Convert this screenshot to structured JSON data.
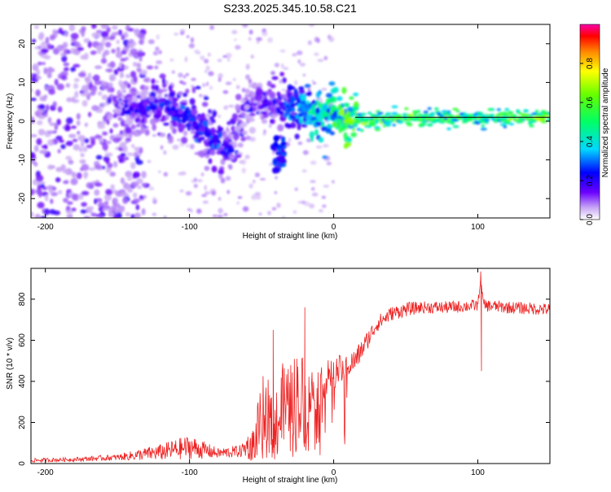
{
  "chart_data": [
    {
      "type": "heatmap",
      "title": "S233.2025.345.10.58.C21",
      "xlabel": "Height of straight line (km)",
      "ylabel": "Frequency (Hz)",
      "xlim": [
        -210,
        150
      ],
      "ylim": [
        -25,
        25
      ],
      "xticks": [
        -200,
        -100,
        0,
        100
      ],
      "xtick_labels": [
        "-200",
        "-100",
        "0",
        "100"
      ],
      "yticks": [
        -20,
        -10,
        0,
        10,
        20
      ],
      "ytick_labels": [
        "-20",
        "-10",
        "0",
        "10",
        "20"
      ],
      "colorbar": {
        "label": "Normalized spectral amplitude",
        "range": [
          0,
          1
        ],
        "ticks": [
          0.0,
          0.2,
          0.4,
          0.6,
          0.8
        ],
        "tick_labels": [
          "0.0",
          "0.2",
          "0.4",
          "0.6",
          "0.8"
        ]
      },
      "ridge": {
        "x": [
          -150,
          -140,
          -130,
          -120,
          -110,
          -100,
          -90,
          -80,
          -70,
          -60,
          -50,
          -40,
          -30,
          -20,
          -10,
          0,
          10,
          20,
          50,
          100,
          150
        ],
        "y": [
          5,
          3,
          4,
          5,
          3,
          1,
          -3,
          -6,
          -7,
          4,
          6,
          4,
          4,
          3,
          1,
          2,
          1,
          0,
          1,
          1,
          1
        ],
        "amplitude": [
          0.2,
          0.22,
          0.25,
          0.25,
          0.28,
          0.3,
          0.28,
          0.3,
          0.25,
          0.2,
          0.22,
          0.25,
          0.3,
          0.45,
          0.5,
          0.55,
          0.7,
          0.65,
          0.65,
          0.6,
          0.7
        ]
      }
    },
    {
      "type": "line",
      "xlabel": "Height of straight line (km)",
      "ylabel": "SNR (10 * v/v)",
      "xlim": [
        -210,
        150
      ],
      "ylim": [
        0,
        950
      ],
      "xticks": [
        -200,
        -100,
        0,
        100
      ],
      "xtick_labels": [
        "-200",
        "-100",
        "0",
        "100"
      ],
      "yticks": [
        0,
        200,
        400,
        600,
        800
      ],
      "ytick_labels": [
        "0",
        "200",
        "400",
        "600",
        "800"
      ],
      "series": [
        {
          "name": "SNR",
          "color": "#ee2222",
          "x": [
            -210,
            -180,
            -150,
            -120,
            -100,
            -80,
            -65,
            -55,
            -50,
            -45,
            -40,
            -35,
            -30,
            -25,
            -20,
            -15,
            -10,
            -5,
            0,
            5,
            10,
            15,
            20,
            25,
            30,
            40,
            50,
            60,
            80,
            100,
            102,
            104,
            120,
            150
          ],
          "y": [
            15,
            20,
            30,
            55,
            80,
            50,
            60,
            100,
            200,
            250,
            180,
            280,
            250,
            320,
            300,
            350,
            380,
            420,
            440,
            460,
            480,
            500,
            560,
            620,
            680,
            730,
            750,
            760,
            760,
            770,
            900,
            770,
            760,
            750
          ],
          "noise": [
            10,
            10,
            15,
            40,
            60,
            25,
            30,
            90,
            220,
            200,
            180,
            220,
            240,
            260,
            220,
            120,
            100,
            90,
            80,
            70,
            60,
            60,
            50,
            45,
            40,
            35,
            35,
            30,
            30,
            30,
            0,
            30,
            30,
            30
          ],
          "spikes": [
            {
              "x": -42,
              "y": 650
            },
            {
              "x": -20,
              "y": 760
            },
            {
              "x": 102,
              "y": 935
            },
            {
              "x": 102.5,
              "y": 450
            }
          ]
        }
      ]
    }
  ]
}
